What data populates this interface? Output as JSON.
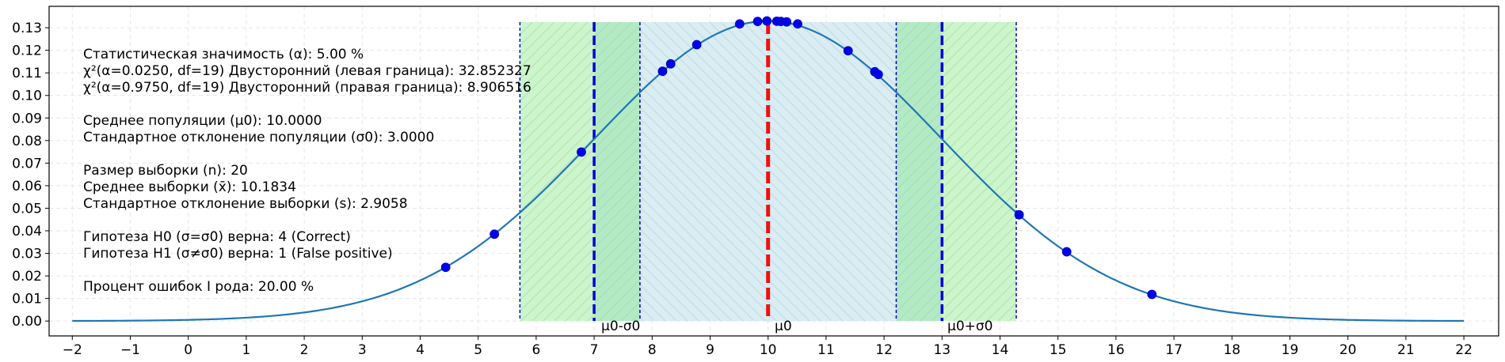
{
  "chart_data": {
    "type": "line",
    "title": "",
    "xlabel": "",
    "ylabel": "",
    "xlim": [
      -2.4,
      22.6
    ],
    "ylim": [
      -0.0066,
      0.1395
    ],
    "x_ticks": [
      -2,
      -1,
      0,
      1,
      2,
      3,
      4,
      5,
      6,
      7,
      8,
      9,
      10,
      11,
      12,
      13,
      14,
      15,
      16,
      17,
      18,
      19,
      20,
      21,
      22
    ],
    "x_tick_labels": [
      "−2",
      "−1",
      "0",
      "1",
      "2",
      "3",
      "4",
      "5",
      "6",
      "7",
      "8",
      "9",
      "10",
      "11",
      "12",
      "13",
      "14",
      "15",
      "16",
      "17",
      "18",
      "19",
      "20",
      "21",
      "22"
    ],
    "y_ticks": [
      0.0,
      0.01,
      0.02,
      0.03,
      0.04,
      0.05,
      0.06,
      0.07,
      0.08,
      0.09,
      0.1,
      0.11,
      0.12,
      0.13
    ],
    "y_tick_labels": [
      "0.00",
      "0.01",
      "0.02",
      "0.03",
      "0.04",
      "0.05",
      "0.06",
      "0.07",
      "0.08",
      "0.09",
      "0.10",
      "0.11",
      "0.12",
      "0.13"
    ],
    "grid": true,
    "curve": {
      "distribution": "normal",
      "mean": 10.0,
      "sd": 3.0,
      "x_range": [
        -2,
        22
      ],
      "color": "#1f77b4"
    },
    "sample_points": [
      {
        "x": 4.44,
        "y": 0.0238
      },
      {
        "x": 5.28,
        "y": 0.0385
      },
      {
        "x": 6.78,
        "y": 0.0749
      },
      {
        "x": 8.18,
        "y": 0.1107
      },
      {
        "x": 8.32,
        "y": 0.114
      },
      {
        "x": 8.77,
        "y": 0.1225
      },
      {
        "x": 9.51,
        "y": 0.1317
      },
      {
        "x": 9.82,
        "y": 0.1328
      },
      {
        "x": 9.98,
        "y": 0.133
      },
      {
        "x": 10.15,
        "y": 0.1329
      },
      {
        "x": 10.22,
        "y": 0.1328
      },
      {
        "x": 10.32,
        "y": 0.1326
      },
      {
        "x": 10.51,
        "y": 0.1317
      },
      {
        "x": 11.38,
        "y": 0.1198
      },
      {
        "x": 11.84,
        "y": 0.1105
      },
      {
        "x": 11.9,
        "y": 0.1093
      },
      {
        "x": 14.33,
        "y": 0.0471
      },
      {
        "x": 15.15,
        "y": 0.0307
      },
      {
        "x": 16.62,
        "y": 0.0118
      }
    ],
    "regions": {
      "left_outer": [
        5.72,
        7.0
      ],
      "left_inner": [
        7.0,
        7.79
      ],
      "center": [
        7.79,
        12.21
      ],
      "right_inner": [
        12.21,
        13.0
      ],
      "right_outer": [
        13.0,
        14.28
      ],
      "top": 0.1325,
      "colors": {
        "outer": "#ccf5cc",
        "inner": "#b2eac5",
        "center": "#d9edf3",
        "boundary": "#0000cc",
        "sigma_line": "#0000dd",
        "mean_line": "#ee1111"
      }
    },
    "lines": {
      "sigma_left": 7.0,
      "sigma_right": 13.0,
      "mean": 10.0,
      "dashed_boundaries": [
        5.72,
        7.79,
        12.21,
        14.28
      ]
    },
    "annotations": {
      "minus_sigma": "μ0-σ0",
      "mean": "μ0",
      "plus_sigma": "μ0+σ0"
    },
    "info": {
      "alpha": "Статистическая значимость (α): 5.00 %",
      "chi_left": "χ²(α=0.0250, df=19) Двусторонний (левая граница): 32.852327",
      "chi_right": "χ²(α=0.9750, df=19) Двусторонний (правая граница): 8.906516",
      "pop_mean": "Среднее популяции (μ0): 10.0000",
      "pop_sd": "Стандартное отклонение популяции (σ0): 3.0000",
      "n": "Размер выборки (n): 20",
      "sample_mean": "Среднее выборки (x̄): 10.1834",
      "sample_sd": "Стандартное отклонение выборки (s): 2.9058",
      "h0": "Гипотеза H0 (σ=σ0) верна: 4 (Correct)",
      "h1": "Гипотеза H1 (σ≠σ0) верна: 1 (False positive)",
      "error_rate": "Процент ошибок I рода: 20.00 %"
    }
  }
}
